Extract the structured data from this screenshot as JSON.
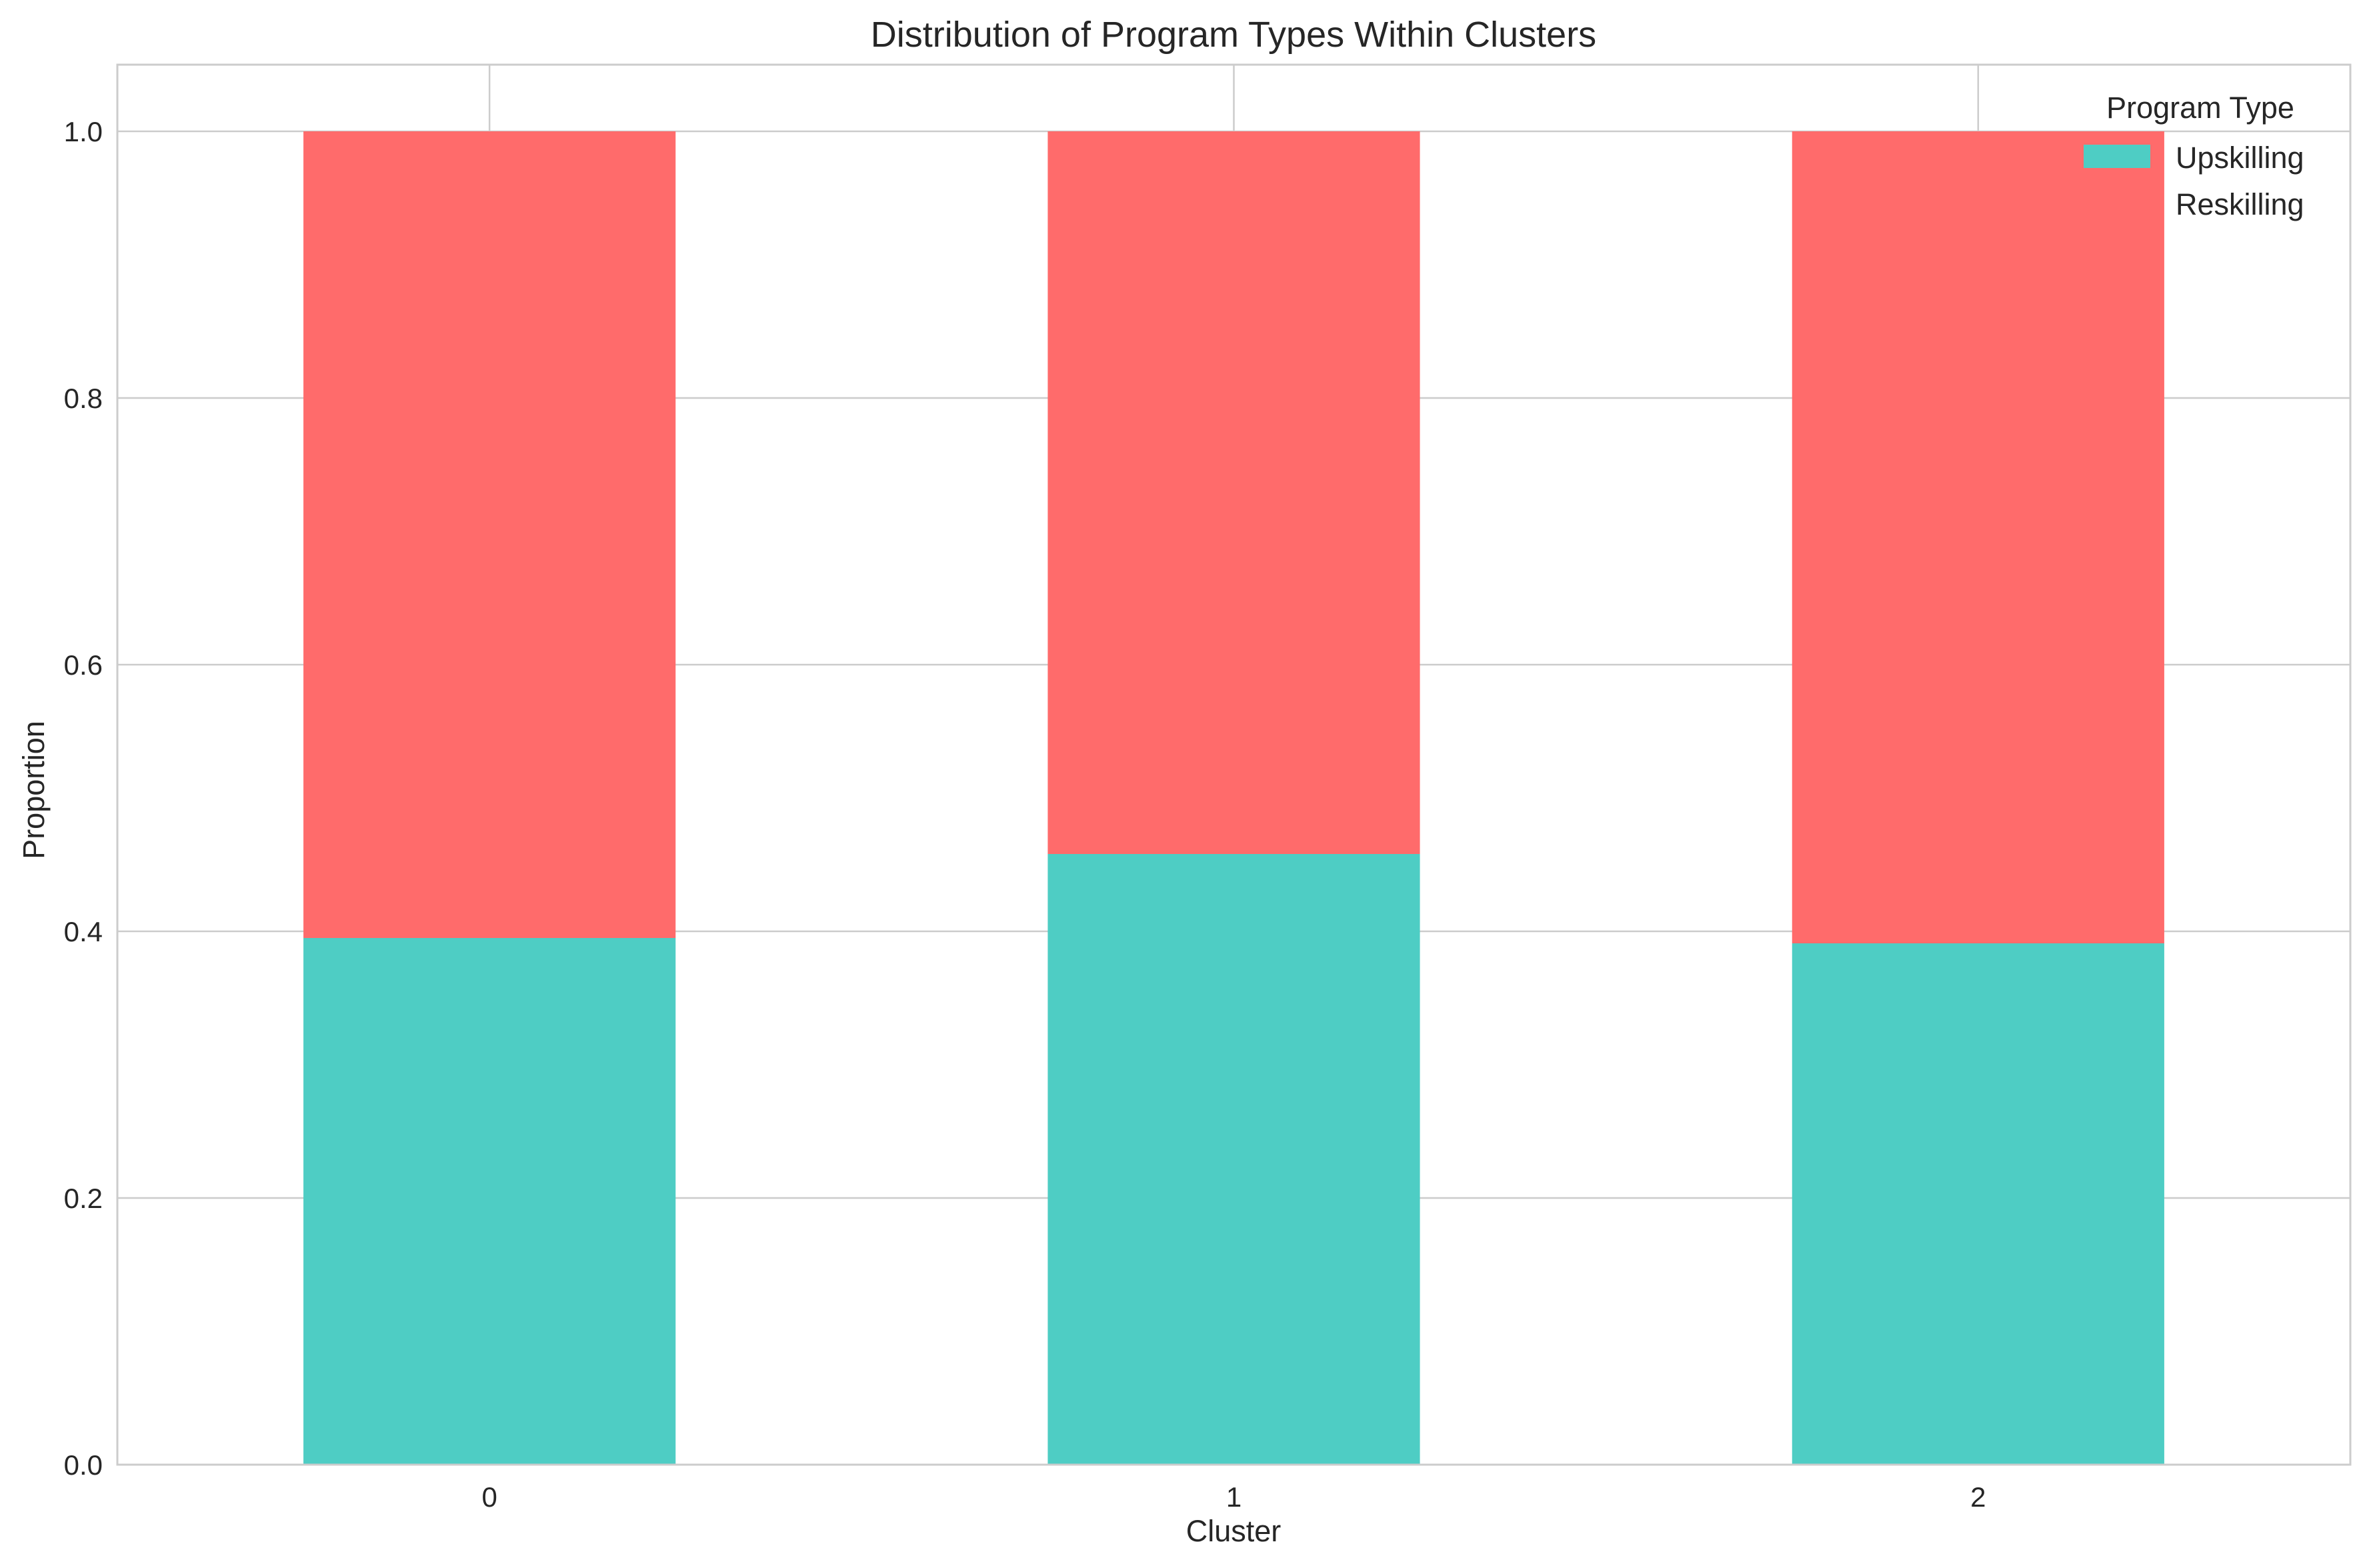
{
  "chart_data": {
    "type": "bar",
    "stacked": true,
    "title": "Distribution of Program Types Within Clusters",
    "xlabel": "Cluster",
    "ylabel": "Proportion",
    "categories": [
      "0",
      "1",
      "2"
    ],
    "ylim": [
      0,
      1.05
    ],
    "yticks": [
      0.0,
      0.2,
      0.4,
      0.6,
      0.8,
      1.0
    ],
    "ytick_labels": [
      "0.0",
      "0.2",
      "0.4",
      "0.6",
      "0.8",
      "1.0"
    ],
    "grid": true,
    "series": [
      {
        "name": "Upskilling",
        "values": [
          0.395,
          0.458,
          0.391
        ],
        "color": "#4ECDC4"
      },
      {
        "name": "Reskilling",
        "values": [
          0.605,
          0.542,
          0.609
        ],
        "color": "#FF6B6B"
      }
    ],
    "legend": {
      "title": "Program Type",
      "placement": "top-right",
      "entries": [
        "Upskilling",
        "Reskilling"
      ]
    }
  }
}
